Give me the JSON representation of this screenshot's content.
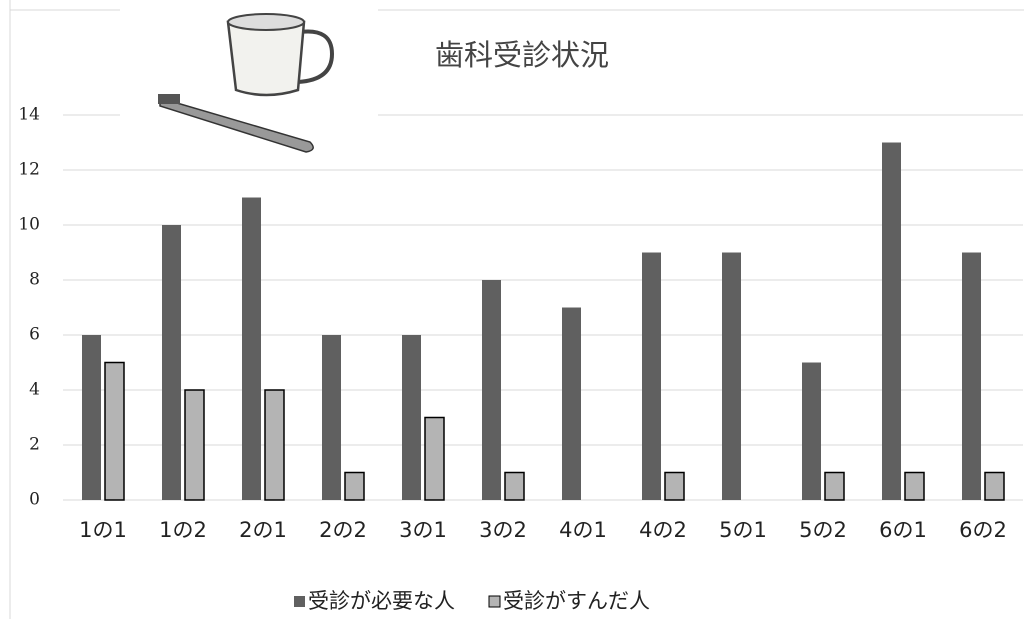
{
  "chart_data": {
    "type": "bar",
    "title": "歯科受診状況",
    "categories": [
      "1の1",
      "1の2",
      "2の1",
      "2の2",
      "3の1",
      "3の2",
      "4の1",
      "4の2",
      "5の1",
      "5の2",
      "6の1",
      "6の2"
    ],
    "series": [
      {
        "name": "受診が必要な人",
        "color": "#606060",
        "values": [
          6,
          10,
          11,
          6,
          6,
          8,
          7,
          9,
          9,
          5,
          13,
          9
        ]
      },
      {
        "name": "受診がすんだ人",
        "color": "#b4b4b4",
        "values": [
          5,
          4,
          4,
          1,
          3,
          1,
          0,
          1,
          0,
          1,
          1,
          1
        ]
      }
    ],
    "ylim": [
      0,
      14
    ],
    "yticks": [
      0,
      2,
      4,
      6,
      8,
      10,
      12,
      14
    ],
    "grid": true,
    "legend": "bottom"
  }
}
